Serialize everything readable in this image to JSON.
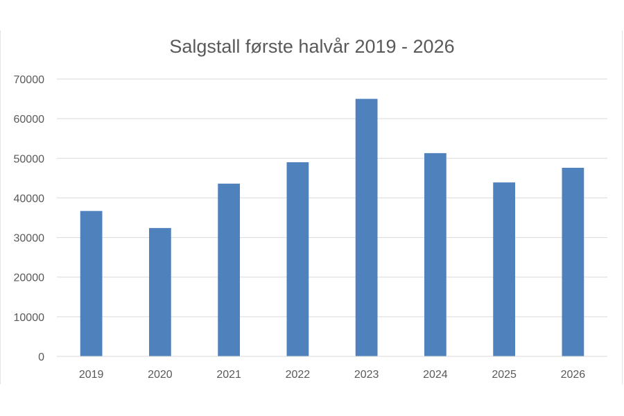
{
  "chart_data": {
    "type": "bar",
    "title": "Salgstall første halvår 2019 - 2026",
    "xlabel": "",
    "ylabel": "",
    "categories": [
      "2019",
      "2020",
      "2021",
      "2022",
      "2023",
      "2024",
      "2025",
      "2026"
    ],
    "values": [
      36700,
      32400,
      43600,
      49000,
      65000,
      51300,
      43900,
      47600
    ],
    "ylim": [
      0,
      70000
    ],
    "yticks": [
      "0",
      "10000",
      "20000",
      "30000",
      "40000",
      "50000",
      "60000",
      "70000"
    ],
    "grid": true,
    "legend": "none",
    "bar_color": "#4f81bd",
    "gridline_color": "#d9d9d9"
  }
}
